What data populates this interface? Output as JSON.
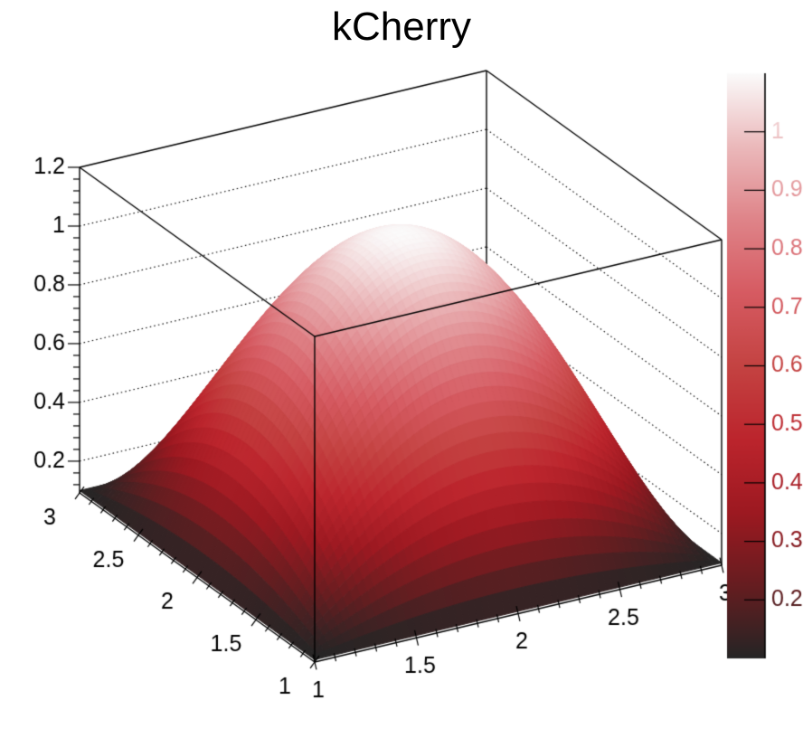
{
  "chart_data": {
    "type": "surface3d",
    "title": "kCherry",
    "source_function": "z(x,y) = 0.1 + (1-(x-2)^2)*(1-(y-2)^2)  for 1<=x<=3, 1<=y<=3",
    "js_expression": "0.1 + (1 - (x-2)*(x-2)) * (1 - (y-2)*(y-2))",
    "z_base": 0.1,
    "z_peak": 1.1,
    "grid_n": 60,
    "x_axis": {
      "min": 1,
      "max": 3,
      "tick_values": [
        1,
        1.5,
        2,
        2.5,
        3
      ],
      "tick_labels": [
        "1",
        "1.5",
        "2",
        "2.5",
        "3"
      ],
      "minor_step": 0.1
    },
    "y_axis": {
      "min": 1,
      "max": 3,
      "tick_values": [
        1,
        1.5,
        2,
        2.5,
        3
      ],
      "tick_labels": [
        "1",
        "1.5",
        "2",
        "2.5",
        "3"
      ],
      "minor_step": 0.1
    },
    "z_axis": {
      "min": 0.092,
      "max": 1.2,
      "tick_values": [
        0.2,
        0.4,
        0.6,
        0.8,
        1,
        1.2
      ],
      "tick_labels": [
        "0.2",
        "0.4",
        "0.6",
        "0.8",
        "1",
        "1.2"
      ],
      "minor_step": 0.04,
      "grid_style": "dotted",
      "grid_values": [
        0.2,
        0.4,
        0.6,
        0.8,
        1
      ]
    },
    "colorbar": {
      "min": 0.1,
      "max": 1.1,
      "tick_values": [
        0.2,
        0.3,
        0.4,
        0.5,
        0.6,
        0.7,
        0.8,
        0.9,
        1
      ],
      "tick_labels": [
        "0.2",
        "0.3",
        "0.4",
        "0.5",
        "0.6",
        "0.7",
        "0.8",
        "0.9",
        "1"
      ]
    },
    "palette": {
      "name": "kCherry",
      "stops": [
        "#252525",
        "#661d20",
        "#9d1921",
        "#bc252d",
        "#c44342",
        "#d65b62",
        "#df8489",
        "#ebb9bb",
        "#fbfbfb"
      ]
    },
    "background_color": "#ffffff",
    "line_color": "#000000",
    "text_color": "#000000"
  }
}
